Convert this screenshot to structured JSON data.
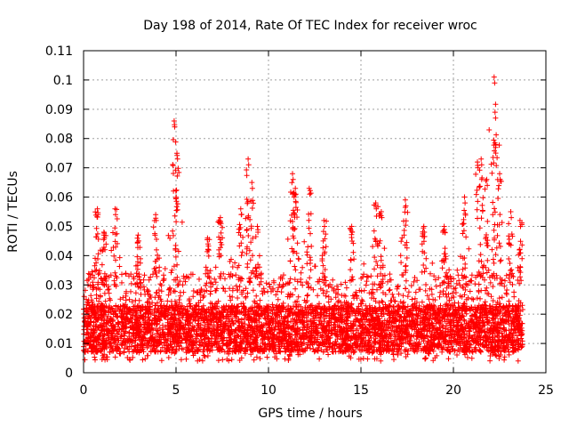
{
  "chart_data": {
    "type": "scatter",
    "title": "Day 198 of 2014, Rate Of TEC Index for receiver wroc",
    "xlabel": "GPS time / hours",
    "ylabel": "ROTI / TECUs",
    "xlim": [
      0,
      25
    ],
    "ylim": [
      0,
      0.11
    ],
    "x_ticks": [
      0,
      5,
      10,
      15,
      20,
      25
    ],
    "x_tick_labels": [
      "0",
      "5",
      "10",
      "15",
      "20",
      "25"
    ],
    "y_ticks": [
      0,
      0.01,
      0.02,
      0.03,
      0.04,
      0.05,
      0.06,
      0.07,
      0.08,
      0.09,
      0.1,
      0.11
    ],
    "y_tick_labels": [
      "0",
      "0.01",
      "0.02",
      "0.03",
      "0.04",
      "0.05",
      "0.06",
      "0.07",
      "0.08",
      "0.09",
      "0.1",
      "0.11"
    ],
    "grid": true,
    "marker": "+",
    "color": "#ff0000",
    "series": [
      {
        "name": "ROTI",
        "x_range": [
          0,
          23.75
        ],
        "y_baseline_range": [
          0.004,
          0.03
        ],
        "peaks": [
          {
            "x": 0.75,
            "y": 0.056
          },
          {
            "x": 1.1,
            "y": 0.048
          },
          {
            "x": 1.7,
            "y": 0.056
          },
          {
            "x": 2.95,
            "y": 0.047
          },
          {
            "x": 3.9,
            "y": 0.054
          },
          {
            "x": 4.9,
            "y": 0.086
          },
          {
            "x": 5.05,
            "y": 0.075
          },
          {
            "x": 6.7,
            "y": 0.046
          },
          {
            "x": 7.4,
            "y": 0.053
          },
          {
            "x": 8.5,
            "y": 0.056
          },
          {
            "x": 8.9,
            "y": 0.073
          },
          {
            "x": 9.1,
            "y": 0.065
          },
          {
            "x": 9.4,
            "y": 0.05
          },
          {
            "x": 11.3,
            "y": 0.068
          },
          {
            "x": 11.45,
            "y": 0.063
          },
          {
            "x": 12.2,
            "y": 0.063
          },
          {
            "x": 13.0,
            "y": 0.052
          },
          {
            "x": 14.5,
            "y": 0.05
          },
          {
            "x": 15.8,
            "y": 0.058
          },
          {
            "x": 16.1,
            "y": 0.055
          },
          {
            "x": 17.4,
            "y": 0.059
          },
          {
            "x": 18.4,
            "y": 0.05
          },
          {
            "x": 19.5,
            "y": 0.05
          },
          {
            "x": 20.6,
            "y": 0.06
          },
          {
            "x": 21.3,
            "y": 0.072
          },
          {
            "x": 21.5,
            "y": 0.073
          },
          {
            "x": 21.8,
            "y": 0.066
          },
          {
            "x": 22.2,
            "y": 0.101
          },
          {
            "x": 22.25,
            "y": 0.089
          },
          {
            "x": 22.5,
            "y": 0.068
          },
          {
            "x": 23.1,
            "y": 0.055
          },
          {
            "x": 23.6,
            "y": 0.052
          }
        ],
        "point_density": "dense band 0.005-0.03 across 0-23.75 h"
      }
    ]
  }
}
